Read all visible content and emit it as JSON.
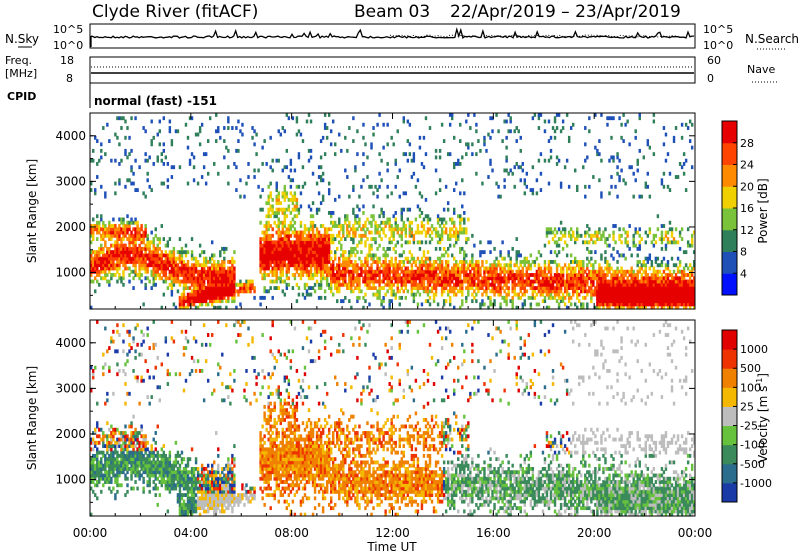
{
  "header": {
    "station": "Clyde River (fitACF)",
    "beam": "Beam 03",
    "date_range": "22/Apr/2019 – 23/Apr/2019"
  },
  "panel_labels": {
    "nsky": "N.Sky",
    "nsearch": "N.Search",
    "freq_line1": "Freq.",
    "freq_line2": "[MHz]",
    "nave": "Nave",
    "cpid": "CPID",
    "cpid_value": "normal (fast) -151"
  },
  "chart_data": [
    {
      "type": "line",
      "name": "noise-panel",
      "left_ticks": [
        "10^5",
        "10^0"
      ],
      "right_ticks": [
        "10^5",
        "10^0"
      ]
    },
    {
      "type": "line",
      "name": "frequency-panel",
      "left_ticks": [
        "18",
        "8"
      ],
      "right_ticks": [
        "60",
        "0"
      ]
    },
    {
      "type": "heatmap",
      "name": "power-panel",
      "ylabel": "Slant Range [km]",
      "y_ticks": [
        "1000",
        "2000",
        "3000",
        "4000"
      ],
      "ylim": [
        200,
        4500
      ],
      "colorbar": {
        "label": "Power [dB]",
        "ticks": [
          "4",
          "8",
          "12",
          "16",
          "20",
          "24",
          "28"
        ],
        "colors": [
          "#0010ff",
          "#1e50b8",
          "#2e7f5a",
          "#7ac23a",
          "#f0d000",
          "#ff8a00",
          "#ff4400",
          "#e60000"
        ],
        "range": [
          0,
          30
        ]
      }
    },
    {
      "type": "heatmap",
      "name": "velocity-panel",
      "ylabel": "Slant Range [km]",
      "y_ticks": [
        "1000",
        "2000",
        "3000",
        "4000"
      ],
      "ylim": [
        200,
        4500
      ],
      "xlabel": "Time UT",
      "x_ticks": [
        "00:00",
        "04:00",
        "08:00",
        "12:00",
        "16:00",
        "20:00",
        "00:00"
      ],
      "colorbar": {
        "label": "Velocity [m s",
        "label_sup": "-1",
        "label_close": "]",
        "ticks": [
          "1000",
          "500",
          "100",
          "25",
          "-25",
          "-100",
          "-500",
          "-1000"
        ],
        "colors": [
          "#1a3aa8",
          "#2a6d8c",
          "#3a8a5c",
          "#66c23c",
          "#bdbdbd",
          "#f5b800",
          "#f08000",
          "#ee3300",
          "#e00000"
        ]
      }
    }
  ]
}
